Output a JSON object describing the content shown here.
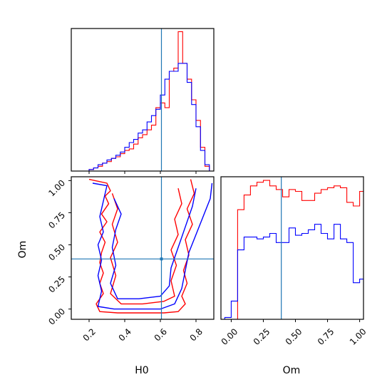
{
  "chart_data": [
    {
      "id": "h0-marginal",
      "type": "histogram",
      "x_range": [
        0.1,
        0.9
      ],
      "truth": 0.606,
      "x_ticks": [
        0.2,
        0.4,
        0.6,
        0.8
      ],
      "tick_labels_visible": false,
      "bin_edges": [
        0.1,
        0.125,
        0.15,
        0.175,
        0.2,
        0.225,
        0.25,
        0.275,
        0.3,
        0.325,
        0.35,
        0.375,
        0.4,
        0.425,
        0.45,
        0.475,
        0.5,
        0.525,
        0.55,
        0.575,
        0.6,
        0.625,
        0.65,
        0.675,
        0.7,
        0.725,
        0.75,
        0.775,
        0.8,
        0.825,
        0.85,
        0.875,
        0.9
      ],
      "series": [
        {
          "color": "#ff0000",
          "counts": [
            0,
            0,
            0,
            0,
            0.01,
            0.02,
            0.03,
            0.05,
            0.06,
            0.08,
            0.09,
            0.11,
            0.13,
            0.14,
            0.17,
            0.21,
            0.23,
            0.26,
            0.29,
            0.4,
            0.43,
            0.4,
            0.63,
            0.65,
            0.88,
            0.68,
            0.58,
            0.45,
            0.32,
            0.15,
            0.03,
            0
          ]
        },
        {
          "color": "#0000ff",
          "counts": [
            0,
            0,
            0,
            0,
            0.01,
            0.02,
            0.04,
            0.05,
            0.07,
            0.08,
            0.1,
            0.12,
            0.15,
            0.18,
            0.2,
            0.24,
            0.26,
            0.31,
            0.35,
            0.39,
            0.48,
            0.58,
            0.63,
            0.63,
            0.68,
            0.68,
            0.56,
            0.42,
            0.28,
            0.13,
            0.04,
            0
          ]
        }
      ]
    },
    {
      "id": "om-marginal",
      "type": "histogram",
      "x_range": [
        -0.08,
        1.03
      ],
      "truth": 0.39,
      "xlabel": "Om",
      "x_ticks": [
        0.0,
        0.25,
        0.5,
        0.75,
        1.0
      ],
      "x_tick_labels": [
        "0.00",
        "0.25",
        "0.50",
        "0.75",
        "1.00"
      ],
      "bin_edges": [
        -0.05,
        0.0,
        0.05,
        0.1,
        0.15,
        0.2,
        0.25,
        0.3,
        0.35,
        0.4,
        0.45,
        0.5,
        0.55,
        0.6,
        0.65,
        0.7,
        0.75,
        0.8,
        0.85,
        0.9,
        0.95,
        1.0,
        1.05
      ],
      "series": [
        {
          "color": "#ff0000",
          "counts": [
            0,
            0,
            0.6,
            0.68,
            0.73,
            0.75,
            0.76,
            0.73,
            0.71,
            0.67,
            0.71,
            0.7,
            0.65,
            0.65,
            0.69,
            0.71,
            0.72,
            0.73,
            0.72,
            0.64,
            0.62,
            0.7
          ]
        },
        {
          "color": "#0000ff",
          "counts": [
            0.01,
            0.1,
            0.38,
            0.45,
            0.45,
            0.44,
            0.45,
            0.47,
            0.42,
            0.42,
            0.5,
            0.46,
            0.47,
            0.49,
            0.52,
            0.47,
            0.44,
            0.52,
            0.44,
            0.42,
            0.2,
            0.22
          ]
        }
      ]
    },
    {
      "id": "h0-om-contours",
      "type": "contour",
      "x_range": [
        0.1,
        0.9
      ],
      "y_range": [
        -0.08,
        1.03
      ],
      "truth_x": 0.606,
      "truth_y": 0.39,
      "xlabel": "H0",
      "ylabel": "Om",
      "x_ticks": [
        0.2,
        0.4,
        0.6,
        0.8
      ],
      "x_tick_labels": [
        "0.2",
        "0.4",
        "0.6",
        "0.8"
      ],
      "y_ticks": [
        0.0,
        0.25,
        0.5,
        0.75,
        1.0
      ],
      "y_tick_labels": [
        "0.00",
        "0.25",
        "0.50",
        "0.75",
        "1.00"
      ],
      "series": [
        {
          "color": "#ff0000",
          "contours": [
            [
              [
                0.2,
                1.01
              ],
              [
                0.3,
                0.98
              ],
              [
                0.32,
                0.92
              ],
              [
                0.29,
                0.88
              ],
              [
                0.31,
                0.82
              ],
              [
                0.27,
                0.74
              ],
              [
                0.3,
                0.68
              ],
              [
                0.26,
                0.6
              ],
              [
                0.29,
                0.52
              ],
              [
                0.27,
                0.44
              ],
              [
                0.26,
                0.36
              ],
              [
                0.28,
                0.28
              ],
              [
                0.26,
                0.2
              ],
              [
                0.28,
                0.12
              ],
              [
                0.24,
                0.04
              ],
              [
                0.26,
                -0.02
              ],
              [
                0.36,
                -0.03
              ],
              [
                0.5,
                -0.03
              ],
              [
                0.62,
                -0.03
              ],
              [
                0.7,
                -0.02
              ],
              [
                0.74,
                0.04
              ],
              [
                0.72,
                0.1
              ],
              [
                0.75,
                0.2
              ],
              [
                0.73,
                0.3
              ],
              [
                0.76,
                0.42
              ],
              [
                0.74,
                0.54
              ],
              [
                0.78,
                0.66
              ],
              [
                0.75,
                0.78
              ],
              [
                0.79,
                0.9
              ],
              [
                0.77,
                1.01
              ]
            ],
            [
              [
                0.33,
                0.9
              ],
              [
                0.36,
                0.78
              ],
              [
                0.33,
                0.66
              ],
              [
                0.36,
                0.52
              ],
              [
                0.32,
                0.4
              ],
              [
                0.35,
                0.26
              ],
              [
                0.32,
                0.12
              ],
              [
                0.38,
                0.04
              ],
              [
                0.5,
                0.04
              ],
              [
                0.62,
                0.06
              ],
              [
                0.68,
                0.1
              ],
              [
                0.66,
                0.22
              ],
              [
                0.69,
                0.34
              ],
              [
                0.66,
                0.46
              ],
              [
                0.7,
                0.58
              ],
              [
                0.68,
                0.7
              ],
              [
                0.72,
                0.82
              ],
              [
                0.7,
                0.94
              ]
            ]
          ]
        },
        {
          "color": "#0000ff",
          "contours": [
            [
              [
                0.22,
                0.98
              ],
              [
                0.3,
                0.96
              ],
              [
                0.28,
                0.84
              ],
              [
                0.26,
                0.72
              ],
              [
                0.28,
                0.6
              ],
              [
                0.25,
                0.5
              ],
              [
                0.27,
                0.38
              ],
              [
                0.25,
                0.26
              ],
              [
                0.27,
                0.14
              ],
              [
                0.25,
                0.02
              ],
              [
                0.34,
                0.0
              ],
              [
                0.48,
                0.0
              ],
              [
                0.6,
                0.0
              ],
              [
                0.68,
                0.04
              ],
              [
                0.72,
                0.16
              ],
              [
                0.74,
                0.3
              ],
              [
                0.76,
                0.44
              ],
              [
                0.8,
                0.58
              ],
              [
                0.84,
                0.72
              ],
              [
                0.88,
                0.86
              ],
              [
                0.89,
                0.98
              ]
            ],
            [
              [
                0.34,
                0.86
              ],
              [
                0.38,
                0.74
              ],
              [
                0.35,
                0.62
              ],
              [
                0.33,
                0.48
              ],
              [
                0.35,
                0.34
              ],
              [
                0.32,
                0.2
              ],
              [
                0.36,
                0.08
              ],
              [
                0.48,
                0.08
              ],
              [
                0.6,
                0.1
              ],
              [
                0.65,
                0.18
              ],
              [
                0.66,
                0.32
              ],
              [
                0.7,
                0.48
              ],
              [
                0.74,
                0.64
              ],
              [
                0.78,
                0.8
              ],
              [
                0.8,
                0.94
              ]
            ]
          ]
        }
      ]
    }
  ]
}
